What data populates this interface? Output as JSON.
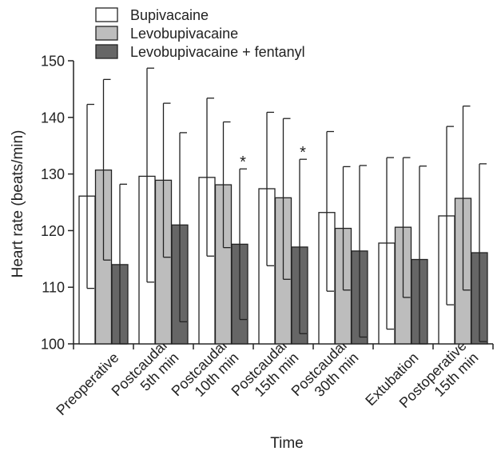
{
  "chart_data": {
    "type": "bar",
    "title": "",
    "xlabel": "Time",
    "ylabel": "Heart rate (beats/min)",
    "ylim": [
      100,
      150
    ],
    "yticks": [
      100,
      110,
      120,
      130,
      140,
      150
    ],
    "grid": false,
    "legend_position": "top-left",
    "categories": [
      [
        "Preoperative"
      ],
      [
        "Postcaudal",
        "5th min"
      ],
      [
        "Postcaudal",
        "10th min"
      ],
      [
        "Postcaudal",
        "15th min"
      ],
      [
        "Postcaudal",
        "30th min"
      ],
      [
        "Extubation"
      ],
      [
        "Postoperative",
        "15th min"
      ]
    ],
    "series": [
      {
        "name": "Bupivacaine",
        "color": "#ffffff",
        "values": [
          126.1,
          129.6,
          129.4,
          127.4,
          123.2,
          117.8,
          122.6
        ],
        "error_low": [
          109.8,
          110.9,
          115.5,
          113.8,
          109.3,
          102.6,
          106.9
        ],
        "error_high": [
          142.3,
          148.7,
          143.4,
          140.9,
          137.5,
          132.9,
          138.4
        ]
      },
      {
        "name": "Levobupivacaine",
        "color": "#bdbdbd",
        "values": [
          130.7,
          128.9,
          128.1,
          125.8,
          120.4,
          120.6,
          125.7
        ],
        "error_low": [
          114.8,
          115.3,
          117.0,
          111.4,
          109.5,
          108.2,
          109.5
        ],
        "error_high": [
          146.7,
          142.5,
          139.2,
          139.8,
          131.3,
          132.9,
          142.0
        ]
      },
      {
        "name": "Levobupivacaine + fentanyl",
        "color": "#666666",
        "values": [
          114.0,
          121.0,
          117.6,
          117.1,
          116.4,
          114.9,
          116.1
        ],
        "error_low": [
          100.0,
          103.9,
          104.3,
          101.8,
          101.2,
          100.0,
          100.4
        ],
        "error_high": [
          128.2,
          137.3,
          130.9,
          132.6,
          131.5,
          131.4,
          131.8
        ]
      }
    ],
    "annotations": [
      {
        "text": "*",
        "category_index": 2,
        "series_index": 2
      },
      {
        "text": "*",
        "category_index": 3,
        "series_index": 2
      }
    ]
  }
}
